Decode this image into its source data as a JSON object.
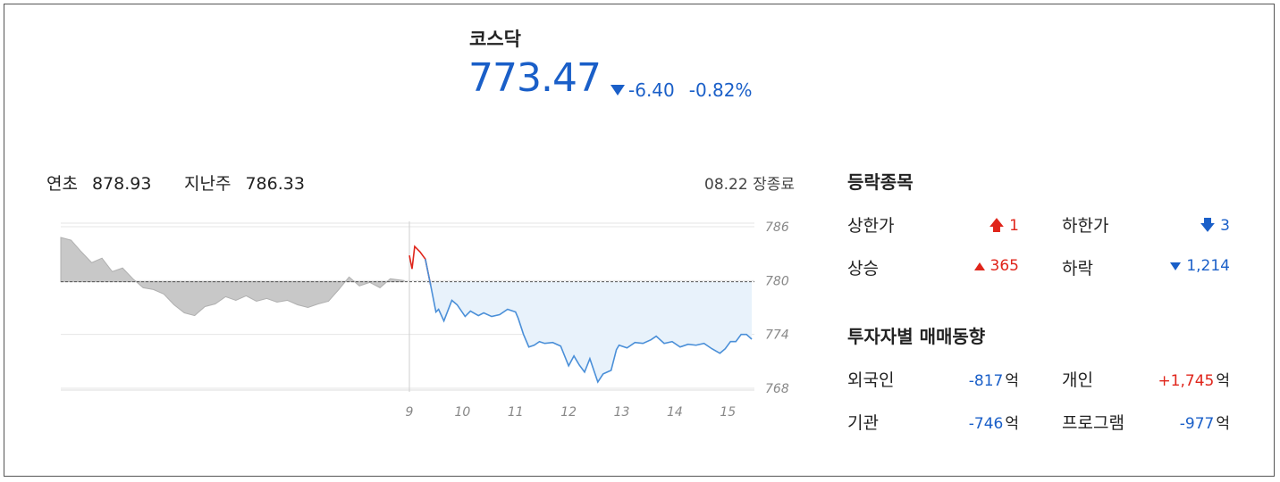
{
  "index": {
    "name": "코스닥",
    "price": "773.47",
    "change": "-6.40",
    "change_pct": "-0.82%"
  },
  "stats": {
    "ytd_label": "연초",
    "ytd_value": "878.93",
    "lastweek_label": "지난주",
    "lastweek_value": "786.33",
    "status": "08.22 장종료"
  },
  "advance_decline": {
    "title": "등락종목",
    "upper_limit_label": "상한가",
    "upper_limit_value": "1",
    "lower_limit_label": "하한가",
    "lower_limit_value": "3",
    "rise_label": "상승",
    "rise_value": "365",
    "fall_label": "하락",
    "fall_value": "1,214"
  },
  "investors": {
    "title": "투자자별 매매동향",
    "foreign_label": "외국인",
    "foreign_value": "-817",
    "individual_label": "개인",
    "individual_value": "+1,745",
    "institution_label": "기관",
    "institution_value": "-746",
    "program_label": "프로그램",
    "program_value": "-977",
    "unit": "억"
  },
  "colors": {
    "up": "#e0251b",
    "down": "#1a5fc8",
    "prev_fill": "#c8c8c8",
    "today_fill": "#e8f2fb"
  },
  "chart_data": {
    "type": "line",
    "previous_close": 779.87,
    "ylim": [
      768,
      786
    ],
    "yticks": [
      786,
      780,
      774,
      768
    ],
    "xlim": [
      9,
      15.5
    ],
    "xticks": [
      9,
      10,
      11,
      12,
      13,
      14,
      15
    ],
    "previous_session_x": [
      0,
      0.03,
      0.06,
      0.09,
      0.12,
      0.15,
      0.18,
      0.21,
      0.24,
      0.27,
      0.3,
      0.33,
      0.36,
      0.39,
      0.42,
      0.45,
      0.48,
      0.51,
      0.54,
      0.57,
      0.6,
      0.63,
      0.66,
      0.69,
      0.72,
      0.75,
      0.78,
      0.81,
      0.84,
      0.87,
      0.9,
      0.93,
      0.96,
      1.0
    ],
    "previous_session": [
      784.8,
      784.5,
      783.2,
      782.0,
      782.5,
      781.0,
      781.4,
      780.2,
      779.2,
      779.0,
      778.5,
      777.3,
      776.4,
      776.1,
      777.1,
      777.4,
      778.2,
      777.8,
      778.3,
      777.7,
      778.0,
      777.6,
      777.8,
      777.3,
      777.0,
      777.4,
      777.7,
      779.0,
      780.4,
      779.4,
      779.8,
      779.2,
      780.2,
      780.0
    ],
    "series": [
      {
        "x": [
          9.0,
          9.05,
          9.1,
          9.2,
          9.3,
          9.4,
          9.5,
          9.55,
          9.65,
          9.8,
          9.9,
          10.05,
          10.15,
          10.3,
          10.4,
          10.55,
          10.7,
          10.85,
          11.0,
          11.05,
          11.15,
          11.25,
          11.35,
          11.45,
          11.55,
          11.7,
          11.85,
          12.0,
          12.1,
          12.2,
          12.3,
          12.4,
          12.55,
          12.65,
          12.8,
          12.9,
          12.95,
          13.1,
          13.25,
          13.4,
          13.55,
          13.65,
          13.8,
          13.95,
          14.1,
          14.25,
          14.4,
          14.55,
          14.7,
          14.85,
          14.95,
          15.05,
          15.15,
          15.25,
          15.35,
          15.45
        ],
        "y": [
          782.8,
          781.3,
          783.8,
          783.2,
          782.4,
          779.5,
          776.5,
          776.8,
          775.5,
          777.8,
          777.3,
          776.0,
          776.6,
          776.1,
          776.4,
          776.0,
          776.2,
          776.8,
          776.5,
          775.8,
          774.0,
          772.6,
          772.8,
          773.2,
          773.0,
          773.1,
          772.7,
          770.5,
          771.6,
          770.6,
          769.8,
          771.3,
          768.7,
          769.6,
          770.0,
          772.3,
          772.8,
          772.5,
          773.1,
          773.0,
          773.4,
          773.8,
          773.0,
          773.2,
          772.6,
          772.9,
          772.8,
          773.0,
          772.4,
          771.9,
          772.4,
          773.2,
          773.2,
          774.0,
          774.0,
          773.47
        ]
      }
    ],
    "title": "",
    "xlabel": "",
    "ylabel": ""
  }
}
